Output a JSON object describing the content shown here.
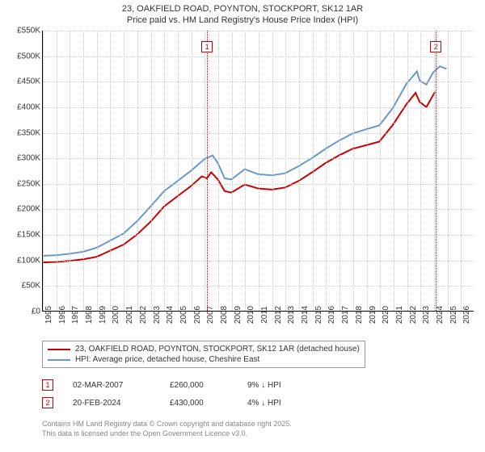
{
  "title_line1": "23, OAKFIELD ROAD, POYNTON, STOCKPORT, SK12 1AR",
  "title_line2": "Price paid vs. HM Land Registry's House Price Index (HPI)",
  "chart": {
    "type": "line",
    "background_color": "#ffffff",
    "grid_color": "#cccccc",
    "axis_color": "#000000",
    "label_fontsize": 10,
    "title_fontsize": 11,
    "xlim": [
      1995,
      2027
    ],
    "ylim": [
      0,
      550
    ],
    "y_ticks": [
      0,
      50,
      100,
      150,
      200,
      250,
      300,
      350,
      400,
      450,
      500,
      550
    ],
    "y_tick_labels": [
      "£0",
      "£50K",
      "£100K",
      "£150K",
      "£200K",
      "£250K",
      "£300K",
      "£350K",
      "£400K",
      "£450K",
      "£500K",
      "£550K"
    ],
    "x_ticks": [
      1995,
      1996,
      1997,
      1998,
      1999,
      2000,
      2001,
      2002,
      2003,
      2004,
      2005,
      2006,
      2007,
      2008,
      2009,
      2010,
      2011,
      2012,
      2013,
      2014,
      2015,
      2016,
      2017,
      2018,
      2019,
      2020,
      2021,
      2022,
      2023,
      2024,
      2025,
      2026
    ],
    "series": [
      {
        "name": "price_paid",
        "color": "#cc0000",
        "line_width": 2,
        "points": [
          [
            1995,
            95
          ],
          [
            1996,
            96
          ],
          [
            1997,
            98
          ],
          [
            1998,
            101
          ],
          [
            1999,
            106
          ],
          [
            2000,
            118
          ],
          [
            2001,
            130
          ],
          [
            2002,
            150
          ],
          [
            2003,
            175
          ],
          [
            2004,
            205
          ],
          [
            2005,
            225
          ],
          [
            2006,
            245
          ],
          [
            2006.8,
            264
          ],
          [
            2007.17,
            260
          ],
          [
            2007.5,
            272
          ],
          [
            2008,
            258
          ],
          [
            2008.5,
            235
          ],
          [
            2009,
            232
          ],
          [
            2010,
            248
          ],
          [
            2010.5,
            244
          ],
          [
            2011,
            240
          ],
          [
            2012,
            238
          ],
          [
            2013,
            242
          ],
          [
            2014,
            255
          ],
          [
            2015,
            272
          ],
          [
            2016,
            290
          ],
          [
            2017,
            305
          ],
          [
            2018,
            318
          ],
          [
            2019,
            325
          ],
          [
            2020,
            332
          ],
          [
            2021,
            365
          ],
          [
            2022,
            405
          ],
          [
            2022.7,
            428
          ],
          [
            2023,
            410
          ],
          [
            2023.5,
            400
          ],
          [
            2024.14,
            430
          ]
        ]
      },
      {
        "name": "hpi",
        "color": "#6699cc",
        "line_width": 2,
        "points": [
          [
            1995,
            108
          ],
          [
            1996,
            109
          ],
          [
            1997,
            112
          ],
          [
            1998,
            116
          ],
          [
            1999,
            124
          ],
          [
            2000,
            138
          ],
          [
            2001,
            152
          ],
          [
            2002,
            176
          ],
          [
            2003,
            205
          ],
          [
            2004,
            235
          ],
          [
            2005,
            255
          ],
          [
            2006,
            275
          ],
          [
            2007,
            298
          ],
          [
            2007.6,
            305
          ],
          [
            2008,
            290
          ],
          [
            2008.5,
            260
          ],
          [
            2009,
            258
          ],
          [
            2010,
            278
          ],
          [
            2010.5,
            273
          ],
          [
            2011,
            268
          ],
          [
            2012,
            266
          ],
          [
            2013,
            270
          ],
          [
            2014,
            284
          ],
          [
            2015,
            300
          ],
          [
            2016,
            318
          ],
          [
            2017,
            334
          ],
          [
            2018,
            348
          ],
          [
            2019,
            356
          ],
          [
            2020,
            364
          ],
          [
            2021,
            398
          ],
          [
            2022,
            445
          ],
          [
            2022.8,
            470
          ],
          [
            2023,
            452
          ],
          [
            2023.5,
            444
          ],
          [
            2024,
            468
          ],
          [
            2024.5,
            480
          ],
          [
            2025,
            475
          ]
        ]
      }
    ],
    "markers": [
      {
        "num": "1",
        "x": 2007.17,
        "y_marker_top": 530,
        "color": "#cc0000"
      },
      {
        "num": "2",
        "x": 2024.14,
        "y_marker_top": 530,
        "color": "#cc0000"
      }
    ]
  },
  "legend": {
    "items": [
      {
        "color": "#cc0000",
        "label": "23, OAKFIELD ROAD, POYNTON, STOCKPORT, SK12 1AR (detached house)"
      },
      {
        "color": "#6699cc",
        "label": "HPI: Average price, detached house, Cheshire East"
      }
    ]
  },
  "sales": [
    {
      "num": "1",
      "color": "#cc0000",
      "date": "02-MAR-2007",
      "price": "£260,000",
      "diff": "9% ↓ HPI"
    },
    {
      "num": "2",
      "color": "#cc0000",
      "date": "20-FEB-2024",
      "price": "£430,000",
      "diff": "4% ↓ HPI"
    }
  ],
  "footer_line1": "Contains HM Land Registry data © Crown copyright and database right 2025.",
  "footer_line2": "This data is licensed under the Open Government Licence v3.0."
}
